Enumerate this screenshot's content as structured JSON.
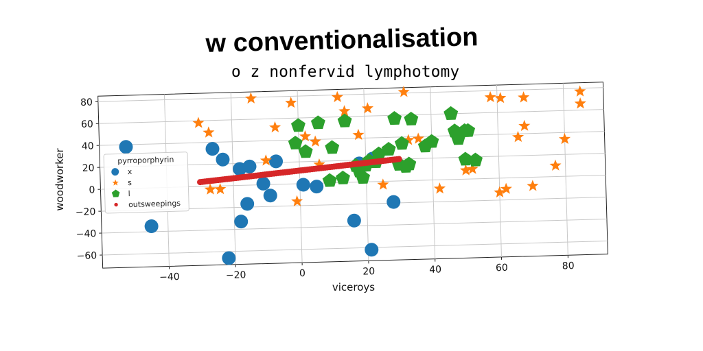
{
  "chart_data": {
    "type": "scatter",
    "title": "w conventionalisation",
    "subtitle": "o z nonfervid lymphotomy",
    "xlabel": "viceroys",
    "ylabel": "woodworker",
    "xlim": [
      -60,
      92
    ],
    "ylim": [
      -72,
      85
    ],
    "xticks": [
      -40,
      -20,
      0,
      20,
      40,
      60,
      80
    ],
    "yticks": [
      80,
      60,
      40,
      20,
      0,
      -20,
      -40,
      -60
    ],
    "xtick_labels": [
      "−40",
      "−20",
      "0",
      "20",
      "40",
      "60",
      "80"
    ],
    "ytick_labels": [
      "80",
      "60",
      "40",
      "20",
      "0",
      "−20",
      "−40",
      "−60"
    ],
    "grid": true,
    "legend": {
      "title": "pyrroporphyrin",
      "position": "center-left"
    },
    "series": [
      {
        "name": "x",
        "marker": "circle",
        "color": "#1f77b4",
        "points": [
          [
            -52,
            38
          ],
          [
            -26,
            34
          ],
          [
            -23,
            24
          ],
          [
            -18,
            15
          ],
          [
            -15,
            17
          ],
          [
            -7,
            21
          ],
          [
            -11,
            1
          ],
          [
            -9,
            -10
          ],
          [
            -16,
            -17
          ],
          [
            -18,
            -33
          ],
          [
            -45,
            -35
          ],
          [
            1,
            -1
          ],
          [
            5,
            -3
          ],
          [
            18,
            17
          ],
          [
            22,
            21
          ],
          [
            28,
            -19
          ],
          [
            16,
            -35
          ],
          [
            21,
            -62
          ],
          [
            -22,
            -66
          ]
        ]
      },
      {
        "name": "s",
        "marker": "star",
        "color": "#ff7f0e",
        "points": [
          [
            -30,
            58
          ],
          [
            -27,
            49
          ],
          [
            -14,
            79
          ],
          [
            -7,
            52
          ],
          [
            -2,
            74
          ],
          [
            2,
            43
          ],
          [
            5,
            38
          ],
          [
            12,
            78
          ],
          [
            14,
            65
          ],
          [
            18,
            43
          ],
          [
            21,
            67
          ],
          [
            32,
            81
          ],
          [
            -10,
            22
          ],
          [
            -27,
            -3
          ],
          [
            -24,
            -3
          ],
          [
            6,
            17
          ],
          [
            -1,
            -16
          ],
          [
            25,
            -3
          ],
          [
            33,
            37
          ],
          [
            36,
            38
          ],
          [
            42,
            -8
          ],
          [
            50,
            8
          ],
          [
            52,
            9
          ],
          [
            60,
            -13
          ],
          [
            62,
            -10
          ],
          [
            58,
            74
          ],
          [
            61,
            73
          ],
          [
            68,
            73
          ],
          [
            66,
            37
          ],
          [
            68,
            47
          ],
          [
            70,
            -8
          ],
          [
            77,
            10
          ],
          [
            80,
            34
          ],
          [
            85,
            77
          ],
          [
            85,
            66
          ]
        ]
      },
      {
        "name": "l",
        "marker": "pentagon",
        "color": "#2ca02c",
        "points": [
          [
            0,
            53
          ],
          [
            6,
            55
          ],
          [
            14,
            56
          ],
          [
            29,
            57
          ],
          [
            34,
            56
          ],
          [
            -1,
            37
          ],
          [
            2,
            29
          ],
          [
            10,
            32
          ],
          [
            24,
            25
          ],
          [
            27,
            29
          ],
          [
            31,
            34
          ],
          [
            38,
            31
          ],
          [
            40,
            35
          ],
          [
            46,
            60
          ],
          [
            47,
            44
          ],
          [
            50,
            44
          ],
          [
            51,
            44
          ],
          [
            48,
            37
          ],
          [
            50,
            18
          ],
          [
            53,
            17
          ],
          [
            17,
            15
          ],
          [
            20,
            15
          ],
          [
            23,
            18
          ],
          [
            9,
            2
          ],
          [
            13,
            4
          ],
          [
            19,
            4
          ],
          [
            30,
            15
          ],
          [
            32,
            13
          ],
          [
            33,
            15
          ],
          [
            18,
            10
          ],
          [
            21,
            19
          ]
        ]
      },
      {
        "name": "outsweepings",
        "marker": "dot",
        "color": "#d62728",
        "line_from": [
          -30,
          4
        ],
        "line_to": [
          30,
          20
        ],
        "count": 90
      }
    ]
  }
}
